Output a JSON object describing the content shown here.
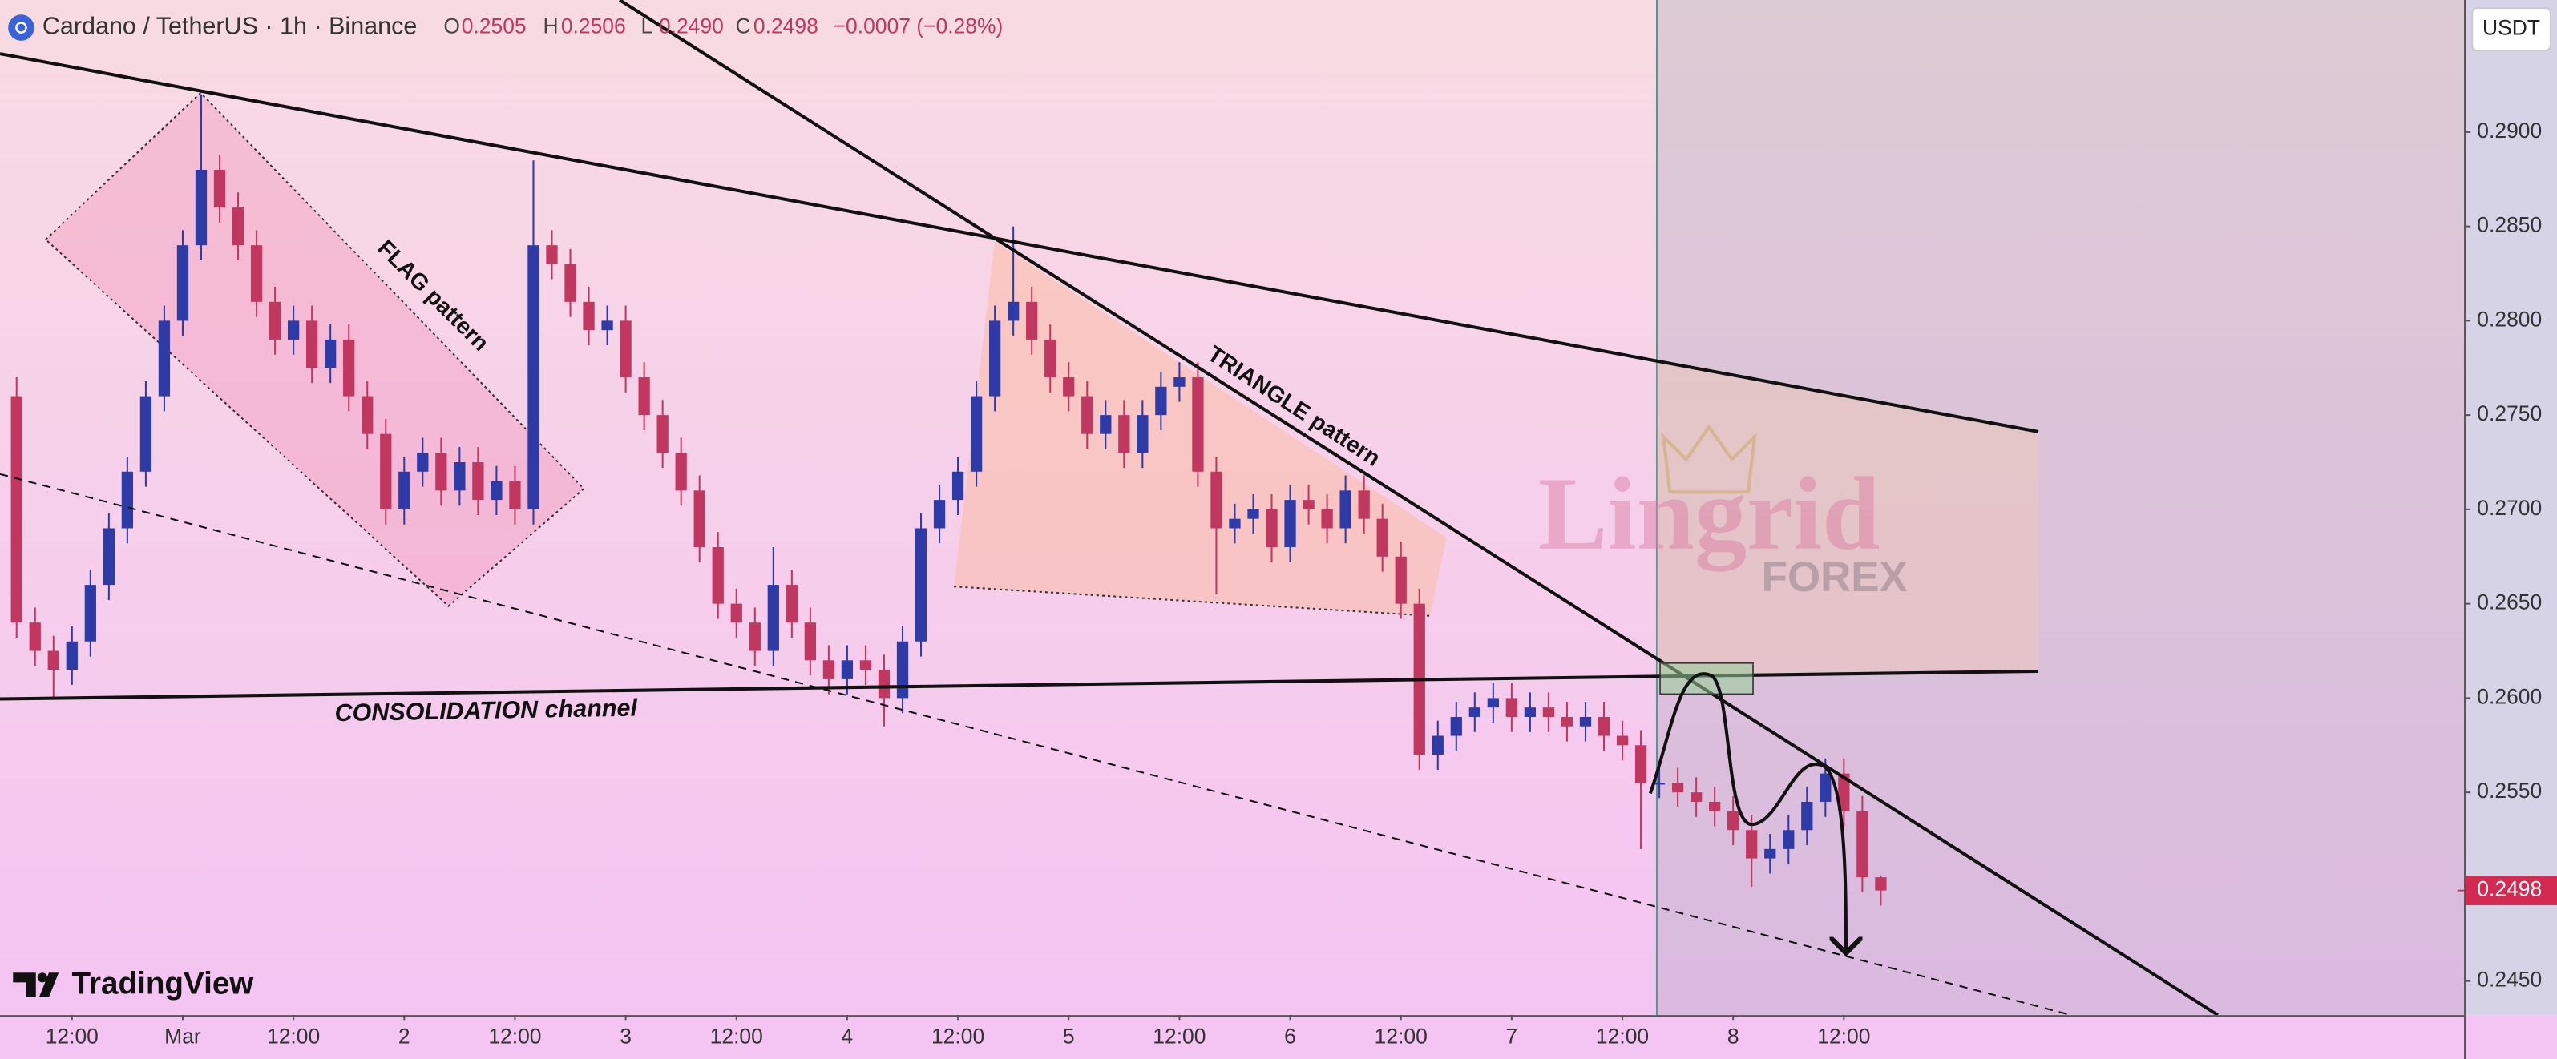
{
  "chart_data": {
    "type": "candlestick",
    "title": "Cardano / TetherUS · 1h · Binance",
    "ohlc_legend": [
      {
        "name": "O",
        "text": "0.2505"
      },
      {
        "name": "H",
        "text": "0.2506"
      },
      {
        "name": "L",
        "text": "0.2490"
      },
      {
        "name": "C",
        "text": "0.2498"
      }
    ],
    "change": "−0.0007 (−0.28%)",
    "currency": "USDT",
    "last_price": 0.2498,
    "up_color": "#2e3aa6",
    "down_color": "#c03760",
    "x": [
      -18,
      -16,
      -14,
      -12,
      -10,
      -8,
      -6,
      -4,
      -2,
      0,
      2,
      4,
      6,
      8,
      10,
      12,
      14,
      16,
      18,
      20,
      22,
      24,
      26,
      28,
      30,
      32,
      34,
      36,
      38,
      40,
      42,
      44,
      46,
      48,
      50,
      52,
      54,
      56,
      58,
      60,
      62,
      64,
      66,
      68,
      70,
      72,
      74,
      76,
      78,
      80,
      82,
      84,
      86,
      88,
      90,
      92,
      94,
      96,
      98,
      100,
      102,
      104,
      106,
      108,
      110,
      112,
      114,
      116,
      118,
      120,
      122,
      124,
      126,
      128,
      130,
      132,
      134,
      136,
      138,
      140,
      142,
      144,
      146,
      148,
      150,
      152,
      154,
      156,
      158,
      160,
      162,
      164,
      166,
      168,
      170,
      172,
      174,
      176,
      178,
      180,
      182,
      184
    ],
    "open": [
      0.276,
      0.264,
      0.2625,
      0.2615,
      0.263,
      0.266,
      0.269,
      0.272,
      0.276,
      0.28,
      0.284,
      0.288,
      0.286,
      0.284,
      0.281,
      0.279,
      0.28,
      0.2775,
      0.279,
      0.276,
      0.274,
      0.27,
      0.272,
      0.273,
      0.271,
      0.2725,
      0.2705,
      0.2715,
      0.27,
      0.284,
      0.283,
      0.281,
      0.2795,
      0.28,
      0.277,
      0.275,
      0.273,
      0.271,
      0.268,
      0.265,
      0.264,
      0.2625,
      0.266,
      0.264,
      0.262,
      0.261,
      0.262,
      0.2615,
      0.26,
      0.263,
      0.269,
      0.2705,
      0.272,
      0.276,
      0.28,
      0.281,
      0.279,
      0.277,
      0.276,
      0.274,
      0.275,
      0.273,
      0.275,
      0.2765,
      0.277,
      0.272,
      0.269,
      0.2695,
      0.27,
      0.268,
      0.2705,
      0.27,
      0.269,
      0.271,
      0.2695,
      0.2675,
      0.265,
      0.257,
      0.258,
      0.259,
      0.2595,
      0.26,
      0.259,
      0.2595,
      0.259,
      0.2585,
      0.259,
      0.258,
      0.2575,
      0.2555,
      0.2555,
      0.255,
      0.2545,
      0.254,
      0.253,
      0.2515,
      0.252,
      0.253,
      0.2545,
      0.256,
      0.254,
      0.2505
    ],
    "high": [
      0.277,
      0.2648,
      0.2633,
      0.2638,
      0.2668,
      0.2698,
      0.2728,
      0.2768,
      0.2808,
      0.2848,
      0.292,
      0.2888,
      0.2868,
      0.2848,
      0.2818,
      0.2808,
      0.2808,
      0.2798,
      0.2798,
      0.2768,
      0.2748,
      0.2728,
      0.2738,
      0.2738,
      0.2733,
      0.2733,
      0.2723,
      0.2723,
      0.2885,
      0.2848,
      0.2838,
      0.2818,
      0.2808,
      0.2808,
      0.2778,
      0.2758,
      0.2738,
      0.2718,
      0.2688,
      0.2658,
      0.2648,
      0.268,
      0.2668,
      0.2648,
      0.2628,
      0.2628,
      0.2628,
      0.2623,
      0.2638,
      0.2698,
      0.2713,
      0.2728,
      0.2768,
      0.2808,
      0.285,
      0.2818,
      0.2798,
      0.2778,
      0.2768,
      0.2758,
      0.2758,
      0.2758,
      0.2773,
      0.2778,
      0.2778,
      0.2728,
      0.2703,
      0.2708,
      0.2708,
      0.2713,
      0.2713,
      0.2708,
      0.2718,
      0.2718,
      0.2703,
      0.2683,
      0.2658,
      0.2588,
      0.2598,
      0.2603,
      0.2608,
      0.2608,
      0.2603,
      0.2603,
      0.2598,
      0.2598,
      0.2598,
      0.2588,
      0.2583,
      0.2563,
      0.2563,
      0.2558,
      0.2553,
      0.2548,
      0.2538,
      0.2528,
      0.2538,
      0.2553,
      0.2568,
      0.2568,
      0.2548,
      0.2506
    ],
    "low": [
      0.2632,
      0.2617,
      0.26,
      0.2607,
      0.2622,
      0.2652,
      0.2682,
      0.2712,
      0.2752,
      0.2792,
      0.2832,
      0.2852,
      0.2832,
      0.2802,
      0.2782,
      0.2782,
      0.2767,
      0.2767,
      0.2752,
      0.2732,
      0.2692,
      0.2692,
      0.2712,
      0.2702,
      0.2702,
      0.2697,
      0.2697,
      0.2692,
      0.2692,
      0.2822,
      0.2802,
      0.2787,
      0.2787,
      0.2762,
      0.2742,
      0.2722,
      0.2702,
      0.2672,
      0.2642,
      0.2632,
      0.2617,
      0.2617,
      0.2632,
      0.2612,
      0.2602,
      0.2602,
      0.2607,
      0.2585,
      0.2592,
      0.2622,
      0.2682,
      0.2697,
      0.2712,
      0.2752,
      0.2792,
      0.2782,
      0.2762,
      0.2752,
      0.2732,
      0.2732,
      0.2722,
      0.2722,
      0.2742,
      0.2757,
      0.2712,
      0.2655,
      0.2682,
      0.2687,
      0.2672,
      0.2672,
      0.2692,
      0.2682,
      0.2682,
      0.2687,
      0.2667,
      0.2642,
      0.2562,
      0.2562,
      0.2572,
      0.2582,
      0.2587,
      0.2582,
      0.2582,
      0.2582,
      0.2577,
      0.2577,
      0.2572,
      0.2567,
      0.252,
      0.2547,
      0.2542,
      0.2537,
      0.2532,
      0.2522,
      0.25,
      0.2507,
      0.2512,
      0.2522,
      0.2537,
      0.2532,
      0.2497,
      0.249
    ],
    "close": [
      0.264,
      0.2625,
      0.2615,
      0.263,
      0.266,
      0.269,
      0.272,
      0.276,
      0.28,
      0.284,
      0.288,
      0.286,
      0.284,
      0.281,
      0.279,
      0.28,
      0.2775,
      0.279,
      0.276,
      0.274,
      0.27,
      0.272,
      0.273,
      0.271,
      0.2725,
      0.2705,
      0.2715,
      0.27,
      0.284,
      0.283,
      0.281,
      0.2795,
      0.28,
      0.277,
      0.275,
      0.273,
      0.271,
      0.268,
      0.265,
      0.264,
      0.2625,
      0.266,
      0.264,
      0.262,
      0.261,
      0.262,
      0.2615,
      0.26,
      0.263,
      0.269,
      0.2705,
      0.272,
      0.276,
      0.28,
      0.281,
      0.279,
      0.277,
      0.276,
      0.274,
      0.275,
      0.273,
      0.275,
      0.2765,
      0.277,
      0.272,
      0.269,
      0.2695,
      0.27,
      0.268,
      0.2705,
      0.27,
      0.269,
      0.271,
      0.2695,
      0.2675,
      0.265,
      0.257,
      0.258,
      0.259,
      0.2595,
      0.26,
      0.259,
      0.2595,
      0.259,
      0.2585,
      0.259,
      0.258,
      0.2575,
      0.2555,
      0.2555,
      0.255,
      0.2545,
      0.254,
      0.253,
      0.2515,
      0.252,
      0.253,
      0.2545,
      0.256,
      0.254,
      0.2505,
      0.2498
    ],
    "xlim": [
      -19.8,
      247.2
    ],
    "xticks": [
      {
        "value": -12,
        "label": "12:00"
      },
      {
        "value": 0,
        "label": "Mar"
      },
      {
        "value": 12,
        "label": "12:00"
      },
      {
        "value": 24,
        "label": "2"
      },
      {
        "value": 36,
        "label": "12:00"
      },
      {
        "value": 48,
        "label": "3"
      },
      {
        "value": 60,
        "label": "12:00"
      },
      {
        "value": 72,
        "label": "4"
      },
      {
        "value": 84,
        "label": "12:00"
      },
      {
        "value": 96,
        "label": "5"
      },
      {
        "value": 108,
        "label": "12:00"
      },
      {
        "value": 120,
        "label": "6"
      },
      {
        "value": 132,
        "label": "12:00"
      },
      {
        "value": 144,
        "label": "7"
      },
      {
        "value": 156,
        "label": "12:00"
      },
      {
        "value": 168,
        "label": "8"
      },
      {
        "value": 180,
        "label": "12:00"
      }
    ],
    "ylim": [
      0.2432,
      0.297
    ],
    "yticks": [
      {
        "value": 0.245,
        "label": "0.2450"
      },
      {
        "value": 0.25,
        "label": "0.2500"
      },
      {
        "value": 0.255,
        "label": "0.2550"
      },
      {
        "value": 0.26,
        "label": "0.2600"
      },
      {
        "value": 0.265,
        "label": "0.2650"
      },
      {
        "value": 0.27,
        "label": "0.2700"
      },
      {
        "value": 0.275,
        "label": "0.2750"
      },
      {
        "value": 0.28,
        "label": "0.2800"
      },
      {
        "value": 0.285,
        "label": "0.2850"
      },
      {
        "value": 0.29,
        "label": "0.2900"
      }
    ],
    "grid": false,
    "annotations": {
      "flag": "FLAG pattern",
      "triangle": "TRIANGLE pattern",
      "consolidation": "CONSOLIDATION channel",
      "watermark": "Lingrid",
      "watermark_sub": "FOREX"
    },
    "branding": "TradingView"
  }
}
